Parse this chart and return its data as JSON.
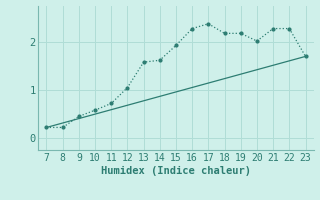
{
  "x": [
    7,
    8,
    9,
    10,
    11,
    12,
    13,
    14,
    15,
    16,
    17,
    18,
    19,
    20,
    21,
    22,
    23
  ],
  "y_curve": [
    0.22,
    0.22,
    0.45,
    0.58,
    0.72,
    1.05,
    1.58,
    1.62,
    1.93,
    2.28,
    2.38,
    2.18,
    2.18,
    2.02,
    2.28,
    2.28,
    1.7
  ],
  "y_line_x": [
    7,
    23
  ],
  "y_line_y": [
    0.22,
    1.7
  ],
  "line_color": "#2d7d72",
  "background_color": "#cff0ea",
  "grid_color": "#b0ddd6",
  "xlabel": "Humidex (Indice chaleur)",
  "xlim": [
    6.5,
    23.5
  ],
  "ylim": [
    -0.25,
    2.75
  ],
  "yticks": [
    0,
    1,
    2
  ],
  "xticks": [
    7,
    8,
    9,
    10,
    11,
    12,
    13,
    14,
    15,
    16,
    17,
    18,
    19,
    20,
    21,
    22,
    23
  ],
  "tick_fontsize": 7,
  "xlabel_fontsize": 7.5
}
